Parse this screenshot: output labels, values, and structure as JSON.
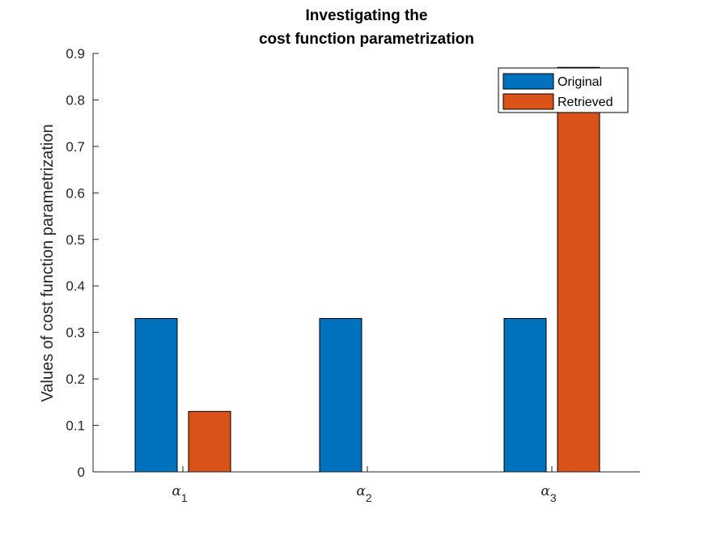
{
  "chart_data": {
    "type": "bar",
    "title_lines": [
      "Investigating the",
      "cost function parametrization"
    ],
    "xlabel": "",
    "ylabel": "Values of cost function parametrization",
    "categories": [
      {
        "symbol": "α",
        "subscript": "1"
      },
      {
        "symbol": "α",
        "subscript": "2"
      },
      {
        "symbol": "α",
        "subscript": "3"
      }
    ],
    "series": [
      {
        "name": "Original",
        "color": "#0072BD",
        "values": [
          0.33,
          0.33,
          0.33
        ]
      },
      {
        "name": "Retrieved",
        "color": "#D95319",
        "values": [
          0.13,
          0.0,
          0.87
        ]
      }
    ],
    "ylim": [
      0,
      0.9
    ],
    "yticks": [
      "0",
      "0.1",
      "0.2",
      "0.3",
      "0.4",
      "0.5",
      "0.6",
      "0.7",
      "0.8",
      "0.9"
    ],
    "grid": false,
    "legend_position": "top-right"
  }
}
